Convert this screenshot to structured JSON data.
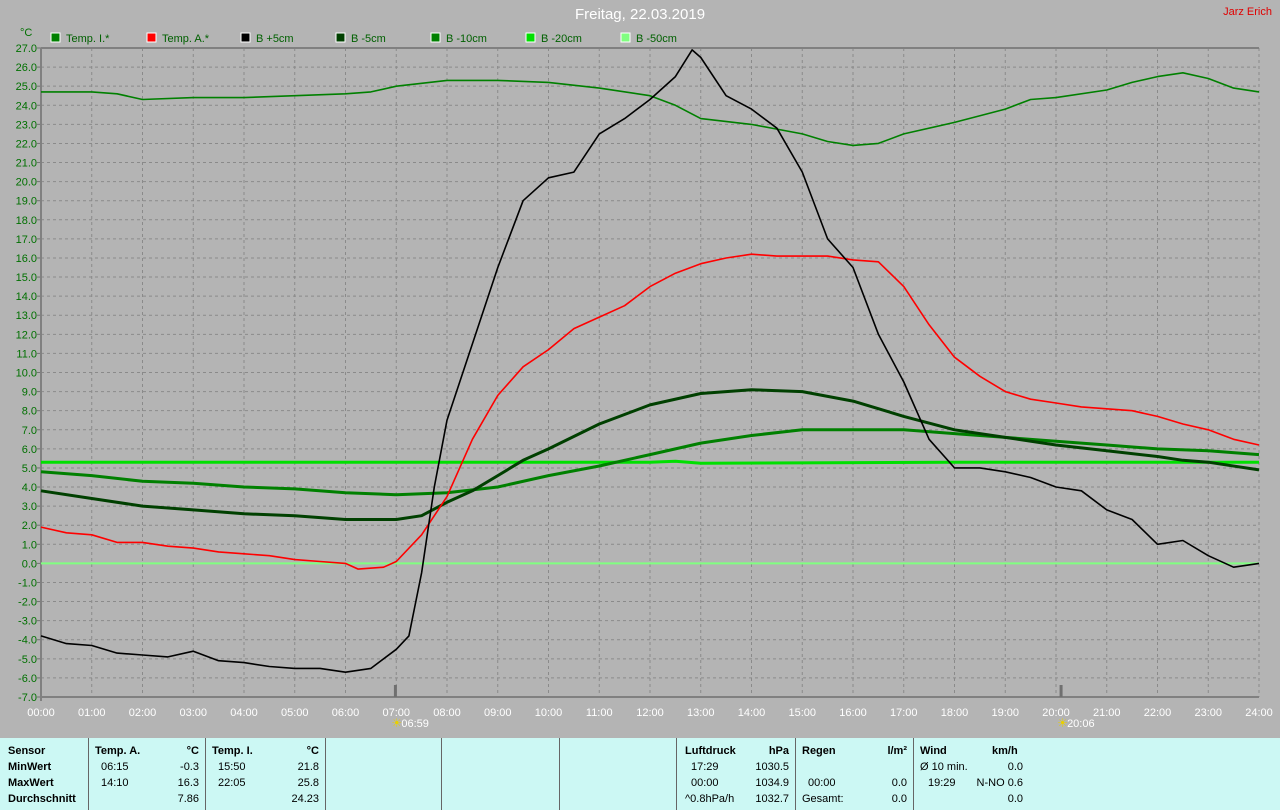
{
  "header": {
    "title": "Freitag, 22.03.2019",
    "author": "Jarz Erich"
  },
  "chart_data": {
    "type": "line",
    "title": "Freitag, 22.03.2019",
    "ylabel": "°C",
    "ylim": [
      -7,
      27
    ],
    "xlim": [
      "00:00",
      "24:00"
    ],
    "grid": true,
    "legend": "top-left",
    "x_ticks": [
      "00:00",
      "01:00",
      "02:00",
      "03:00",
      "04:00",
      "05:00",
      "06:00",
      "07:00",
      "08:00",
      "09:00",
      "10:00",
      "11:00",
      "12:00",
      "13:00",
      "14:00",
      "15:00",
      "16:00",
      "17:00",
      "18:00",
      "19:00",
      "20:00",
      "21:00",
      "22:00",
      "23:00",
      "24:00"
    ],
    "y_ticks": [
      "27.0",
      "26.0",
      "25.0",
      "24.0",
      "23.0",
      "22.0",
      "21.0",
      "20.0",
      "19.0",
      "18.0",
      "17.0",
      "16.0",
      "15.0",
      "14.0",
      "13.0",
      "12.0",
      "11.0",
      "10.0",
      "9.0",
      "8.0",
      "7.0",
      "6.0",
      "5.0",
      "4.0",
      "3.0",
      "2.0",
      "1.0",
      "0.0",
      "-1.0",
      "-2.0",
      "-3.0",
      "-4.0",
      "-5.0",
      "-6.0",
      "-7.0"
    ],
    "annotations": {
      "sunrise": "06:59",
      "sunset": "20:06"
    },
    "series": [
      {
        "name": "Temp. I.*",
        "color": "#008000",
        "x": [
          0,
          1,
          1.5,
          2,
          3,
          4,
          5,
          6,
          6.5,
          7,
          8,
          9,
          10,
          11,
          12,
          12.5,
          13,
          14,
          15,
          15.5,
          16,
          16.5,
          17,
          18,
          19,
          19.5,
          20,
          21,
          21.5,
          22,
          22.5,
          23,
          23.5,
          24
        ],
        "y": [
          24.7,
          24.7,
          24.6,
          24.3,
          24.4,
          24.4,
          24.5,
          24.6,
          24.7,
          25.0,
          25.3,
          25.3,
          25.2,
          24.9,
          24.5,
          24.0,
          23.3,
          23.0,
          22.5,
          22.1,
          21.9,
          22.0,
          22.5,
          23.1,
          23.8,
          24.3,
          24.4,
          24.8,
          25.2,
          25.5,
          25.7,
          25.4,
          24.9,
          24.7
        ]
      },
      {
        "name": "Temp. A.*",
        "color": "#ff0000",
        "x": [
          0,
          0.5,
          1,
          1.5,
          2,
          2.5,
          3,
          3.5,
          4,
          4.5,
          5,
          5.5,
          6,
          6.25,
          6.75,
          7,
          7.5,
          8,
          8.5,
          9,
          9.5,
          10,
          10.5,
          11,
          11.5,
          12,
          12.5,
          13,
          13.5,
          14,
          14.5,
          15,
          15.5,
          16,
          16.5,
          17,
          17.5,
          18,
          18.5,
          19,
          19.5,
          20,
          20.5,
          21,
          21.5,
          22,
          22.5,
          23,
          23.5,
          24
        ],
        "y": [
          1.9,
          1.6,
          1.5,
          1.1,
          1.1,
          0.9,
          0.8,
          0.6,
          0.5,
          0.4,
          0.2,
          0.1,
          0.0,
          -0.3,
          -0.2,
          0.1,
          1.5,
          3.5,
          6.5,
          8.8,
          10.3,
          11.2,
          12.3,
          12.9,
          13.5,
          14.5,
          15.2,
          15.7,
          16.0,
          16.2,
          16.1,
          16.1,
          16.1,
          15.9,
          15.8,
          14.5,
          12.5,
          10.8,
          9.8,
          9.0,
          8.6,
          8.4,
          8.2,
          8.1,
          8.0,
          7.7,
          7.3,
          7.0,
          6.5,
          6.2
        ]
      },
      {
        "name": "B +5cm",
        "color": "#000000",
        "x": [
          0,
          0.5,
          1,
          1.5,
          2,
          2.5,
          3,
          3.5,
          4,
          4.5,
          5,
          5.5,
          6,
          6.5,
          7,
          7.25,
          7.5,
          7.75,
          8,
          8.5,
          9,
          9.5,
          10,
          10.5,
          11,
          11.5,
          12,
          12.5,
          12.83,
          13,
          13.5,
          14,
          14.5,
          15,
          15.5,
          16,
          16.5,
          17,
          17.5,
          18,
          18.5,
          19,
          19.5,
          20,
          20.5,
          21,
          21.5,
          22,
          22.5,
          23,
          23.5,
          24
        ],
        "y": [
          -3.8,
          -4.2,
          -4.3,
          -4.7,
          -4.8,
          -4.9,
          -4.6,
          -5.1,
          -5.2,
          -5.4,
          -5.5,
          -5.5,
          -5.7,
          -5.5,
          -4.5,
          -3.8,
          -0.5,
          4.0,
          7.5,
          11.5,
          15.5,
          19.0,
          20.2,
          20.5,
          22.5,
          23.3,
          24.3,
          25.5,
          26.9,
          26.5,
          24.5,
          23.8,
          22.8,
          20.5,
          17.0,
          15.5,
          12.0,
          9.5,
          6.5,
          5.0,
          5.0,
          4.8,
          4.5,
          4.0,
          3.8,
          2.8,
          2.3,
          1.0,
          1.2,
          0.4,
          -0.2,
          0.0
        ]
      },
      {
        "name": "B -5cm",
        "color": "#004000",
        "x": [
          0,
          1,
          2,
          3,
          4,
          5,
          6,
          7,
          7.5,
          8,
          8.5,
          9,
          9.5,
          10,
          11,
          12,
          13,
          14,
          15,
          16,
          17,
          18,
          19,
          20,
          21,
          22,
          22.5,
          23,
          24
        ],
        "y": [
          3.8,
          3.4,
          3.0,
          2.8,
          2.6,
          2.5,
          2.3,
          2.3,
          2.5,
          3.2,
          3.8,
          4.6,
          5.4,
          6.0,
          7.3,
          8.3,
          8.9,
          9.1,
          9.0,
          8.5,
          7.7,
          7.0,
          6.6,
          6.2,
          5.9,
          5.6,
          5.4,
          5.3,
          4.9
        ]
      },
      {
        "name": "B -10cm",
        "color": "#008000",
        "x": [
          0,
          1,
          2,
          3,
          4,
          5,
          6,
          7,
          8,
          9,
          10,
          11,
          12,
          13,
          14,
          15,
          16,
          17,
          18,
          19,
          20,
          21,
          22,
          23,
          24
        ],
        "y": [
          4.8,
          4.6,
          4.3,
          4.2,
          4.0,
          3.9,
          3.7,
          3.6,
          3.7,
          4.0,
          4.6,
          5.1,
          5.7,
          6.3,
          6.7,
          7.0,
          7.0,
          7.0,
          6.8,
          6.6,
          6.4,
          6.2,
          6.0,
          5.9,
          5.7
        ]
      },
      {
        "name": "B -20cm",
        "color": "#00e000",
        "x": [
          0,
          6,
          12,
          12.5,
          13,
          18,
          24
        ],
        "y": [
          5.3,
          5.3,
          5.3,
          5.35,
          5.25,
          5.3,
          5.3
        ]
      },
      {
        "name": "B -50cm",
        "color": "#80ff80",
        "x": [
          0,
          24
        ],
        "y": [
          0.0,
          0.0
        ]
      }
    ]
  },
  "table": {
    "sensor": {
      "header": "Sensor",
      "rows": [
        "MinWert",
        "MaxWert",
        "Durchschnitt"
      ]
    },
    "temp_a": {
      "header": "Temp. A.",
      "unit": "°C",
      "min_time": "06:15",
      "min": "-0.3",
      "max_time": "14:10",
      "max": "16.3",
      "avg": "7.86"
    },
    "temp_i": {
      "header": "Temp. I.",
      "unit": "°C",
      "min_time": "15:50",
      "min": "21.8",
      "max_time": "22:05",
      "max": "25.8",
      "avg": "24.23"
    },
    "pressure": {
      "header": "Luftdruck",
      "unit": "hPa",
      "r1_label": "17:29",
      "r1": "1030.5",
      "r2_label": "00:00",
      "r2": "1034.9",
      "r3_label": "^0.8hPa/h",
      "r3": "1032.7"
    },
    "rain": {
      "header": "Regen",
      "unit": "l/m²",
      "r2_label": "00:00",
      "r2": "0.0",
      "r3_label": "Gesamt:",
      "r3": "0.0"
    },
    "wind": {
      "header": "Wind",
      "unit": "km/h",
      "r1_label": "Ø 10 min.",
      "r1": "0.0",
      "r2_label": "19:29",
      "r2": "N-NO 0.6",
      "r3": "0.0"
    }
  }
}
